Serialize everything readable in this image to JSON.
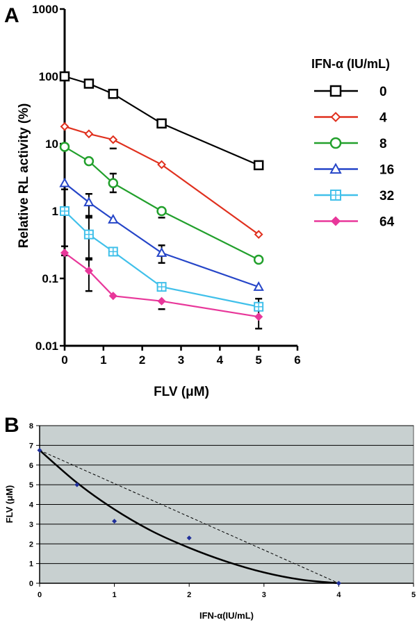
{
  "figure": {
    "panel_a_letter": "A",
    "panel_b_letter": "B"
  },
  "chart_data": [
    {
      "type": "line",
      "panel": "A",
      "xlabel": "FLV (μM)",
      "ylabel": "Relative RL activity (%)",
      "y_scale": "log",
      "xlim": [
        0,
        6
      ],
      "ylim": [
        0.01,
        1000
      ],
      "x_ticks": [
        "0",
        "1",
        "2",
        "3",
        "4",
        "5",
        "6"
      ],
      "y_ticks": [
        "0.01",
        "0.1",
        "1",
        "10",
        "100",
        "1000"
      ],
      "legend": {
        "title": "IFN-α (IU/mL)",
        "placement": "right"
      },
      "x": [
        0,
        0.625,
        1.25,
        2.5,
        5
      ],
      "series": [
        {
          "name": "0",
          "color": "#000000",
          "marker": "square",
          "values": [
            100,
            78,
            55,
            20,
            4.8
          ]
        },
        {
          "name": "4",
          "color": "#e0301e",
          "marker": "diamond-open",
          "values": [
            18,
            14,
            11.5,
            4.9,
            0.45
          ]
        },
        {
          "name": "8",
          "color": "#22a02c",
          "marker": "circle",
          "values": [
            9,
            5.5,
            2.6,
            1.0,
            0.19
          ]
        },
        {
          "name": "16",
          "color": "#2545c8",
          "marker": "triangle",
          "values": [
            2.6,
            1.35,
            0.75,
            0.24,
            0.075
          ]
        },
        {
          "name": "32",
          "color": "#40c0ea",
          "marker": "square-plus",
          "values": [
            1.0,
            0.45,
            0.25,
            0.075,
            0.038
          ]
        },
        {
          "name": "64",
          "color": "#e8379a",
          "marker": "diamond-filled",
          "values": [
            0.24,
            0.13,
            0.055,
            0.046,
            0.027
          ]
        }
      ],
      "error_bars": [
        {
          "x": 0,
          "lo": 2.1,
          "hi": 2.1
        },
        {
          "x": 0,
          "lo": 0.22,
          "hi": 0.3
        },
        {
          "x": 0.625,
          "lo": 0.8,
          "hi": 1.8
        },
        {
          "x": 0.625,
          "lo": 0.2,
          "hi": 0.85
        },
        {
          "x": 0.625,
          "lo": 0.065,
          "hi": 0.19
        },
        {
          "x": 1.25,
          "lo": 8.5,
          "hi": 8.5
        },
        {
          "x": 1.25,
          "lo": 1.9,
          "hi": 3.6
        },
        {
          "x": 2.5,
          "lo": 0.8,
          "hi": 0.8
        },
        {
          "x": 2.5,
          "lo": 0.17,
          "hi": 0.31
        },
        {
          "x": 2.5,
          "lo": 0.035,
          "hi": 0.035
        },
        {
          "x": 5,
          "lo": 0.018,
          "hi": 0.05
        }
      ]
    },
    {
      "type": "scatter",
      "panel": "B",
      "xlabel": "IFN-α(IU/mL)",
      "ylabel": "FLV (μM)",
      "xlim": [
        0,
        5
      ],
      "ylim": [
        0,
        8
      ],
      "grid": true,
      "x_ticks": [
        "0",
        "1",
        "2",
        "3",
        "4",
        "5"
      ],
      "y_ticks": [
        "0",
        "1",
        "2",
        "3",
        "4",
        "5",
        "6",
        "7",
        "8"
      ],
      "background": "#c8d0d0",
      "points": {
        "color": "#1f2f9a",
        "x": [
          0,
          0.5,
          1,
          2,
          4
        ],
        "y": [
          6.75,
          5.0,
          3.15,
          2.3,
          0
        ]
      },
      "fit_curve": {
        "style": "solid",
        "x": [
          0,
          0.5,
          1,
          1.5,
          2,
          2.5,
          3,
          3.5,
          4
        ],
        "y": [
          6.75,
          5.1,
          3.75,
          2.65,
          1.8,
          1.1,
          0.55,
          0.18,
          0
        ]
      },
      "additivity_line": {
        "style": "dashed",
        "x": [
          0,
          4
        ],
        "y": [
          6.75,
          0
        ]
      }
    }
  ]
}
